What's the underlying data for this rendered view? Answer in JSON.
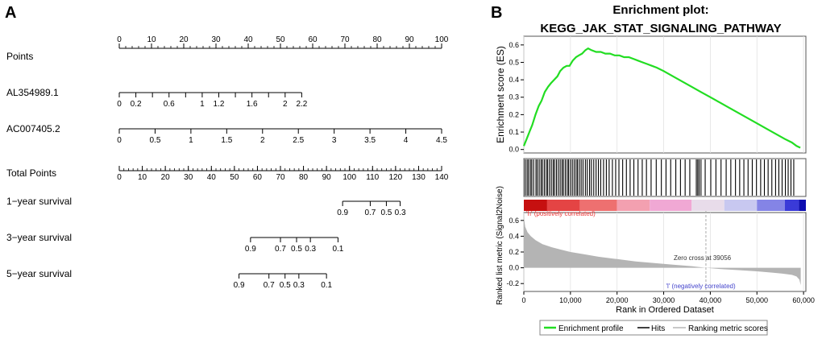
{
  "chart_data": [
    {
      "type": "nomogram",
      "panel_label": "A",
      "rows": [
        {
          "label": "Points",
          "scale": {
            "min": 0,
            "max": 100,
            "major": [
              0,
              10,
              20,
              30,
              40,
              50,
              60,
              70,
              80,
              90,
              100
            ],
            "minor_step": 2
          }
        },
        {
          "label": "AL354989.1",
          "scale": {
            "min": 0,
            "max": 2.2,
            "ticks": [
              0,
              0.2,
              0.4,
              0.6,
              0.8,
              1,
              1.2,
              1.4,
              1.6,
              1.8,
              2,
              2.2
            ],
            "tick_labels": [
              {
                "v": 0,
                "t": "0"
              },
              {
                "v": 0.2,
                "t": "0.2"
              },
              {
                "v": 0.6,
                "t": "0.6"
              },
              {
                "v": 1,
                "t": "1"
              },
              {
                "v": 1.2,
                "t": "1.2"
              },
              {
                "v": 1.6,
                "t": "1.6"
              },
              {
                "v": 2,
                "t": "2"
              },
              {
                "v": 2.2,
                "t": "2.2"
              }
            ]
          },
          "points_range": [
            0,
            56.6
          ]
        },
        {
          "label": "AC007405.2",
          "scale": {
            "min": 0,
            "max": 4.5,
            "major": [
              0,
              0.5,
              1,
              1.5,
              2,
              2.5,
              3,
              3.5,
              4,
              4.5
            ],
            "major_labels": [
              "0",
              "0.5",
              "1",
              "1.5",
              "2",
              "2.5",
              "3",
              "3.5",
              "4",
              "4.5"
            ]
          },
          "points_range": [
            0,
            100
          ]
        },
        {
          "label": "Total Points",
          "scale": {
            "min": 0,
            "max": 140,
            "major": [
              0,
              10,
              20,
              30,
              40,
              50,
              60,
              70,
              80,
              90,
              100,
              110,
              120,
              130,
              140
            ],
            "minor_step": 2
          }
        },
        {
          "label": "1−year survival",
          "ticks": [
            {
              "t": "0.9",
              "tp": 97
            },
            {
              "t": "0.7",
              "tp": 109
            },
            {
              "t": "0.5",
              "tp": 116
            },
            {
              "t": "0.3",
              "tp": 122
            }
          ]
        },
        {
          "label": "3−year survival",
          "ticks": [
            {
              "t": "0.9",
              "tp": 57
            },
            {
              "t": "0.7",
              "tp": 70
            },
            {
              "t": "0.5",
              "tp": 77
            },
            {
              "t": "0.3",
              "tp": 83
            },
            {
              "t": "0.1",
              "tp": 95
            }
          ]
        },
        {
          "label": "5−year survival",
          "ticks": [
            {
              "t": "0.9",
              "tp": 52
            },
            {
              "t": "0.7",
              "tp": 65
            },
            {
              "t": "0.5",
              "tp": 72
            },
            {
              "t": "0.3",
              "tp": 78
            },
            {
              "t": "0.1",
              "tp": 90
            }
          ]
        }
      ]
    },
    {
      "type": "line",
      "panel_label": "B",
      "title": "Enrichment plot:",
      "subtitle": "KEGG_JAK_STAT_SIGNALING_PATHWAY",
      "ylabel": "Enrichment score (ES)",
      "xlim": [
        0,
        60500
      ],
      "ylim": [
        -0.02,
        0.65
      ],
      "yticks": [
        0.0,
        0.1,
        0.2,
        0.3,
        0.4,
        0.5,
        0.6
      ],
      "ytick_labels": [
        "0.0",
        "0.1",
        "0.2",
        "0.3",
        "0.4",
        "0.5",
        "0.6"
      ],
      "series": [
        {
          "name": "Enrichment profile",
          "color": "#22dd22",
          "x": [
            0,
            600,
            1200,
            1800,
            2500,
            3200,
            3800,
            4500,
            5200,
            5800,
            6500,
            7200,
            7800,
            8500,
            9200,
            9800,
            10500,
            11200,
            11800,
            12500,
            13200,
            13800,
            14500,
            15500,
            16500,
            17500,
            18500,
            19500,
            20500,
            21500,
            22500,
            23500,
            24500,
            25500,
            26500,
            27500,
            28500,
            30000,
            32000,
            34000,
            36000,
            38000,
            40000,
            42000,
            44000,
            46000,
            48000,
            50000,
            52000,
            54000,
            56000,
            57500,
            58500,
            59300
          ],
          "y": [
            0.02,
            0.06,
            0.1,
            0.14,
            0.2,
            0.25,
            0.28,
            0.33,
            0.36,
            0.38,
            0.4,
            0.42,
            0.45,
            0.47,
            0.48,
            0.48,
            0.51,
            0.53,
            0.54,
            0.55,
            0.57,
            0.58,
            0.57,
            0.56,
            0.56,
            0.55,
            0.55,
            0.54,
            0.54,
            0.53,
            0.53,
            0.52,
            0.51,
            0.5,
            0.49,
            0.48,
            0.47,
            0.45,
            0.42,
            0.39,
            0.36,
            0.33,
            0.3,
            0.27,
            0.24,
            0.21,
            0.18,
            0.15,
            0.12,
            0.09,
            0.06,
            0.04,
            0.02,
            0.01
          ]
        }
      ]
    },
    {
      "type": "barcode",
      "name": "Hits",
      "color": "#000000",
      "hit_ranks": [
        300,
        700,
        1000,
        1400,
        1700,
        2100,
        2600,
        2900,
        3300,
        3700,
        4000,
        4400,
        4800,
        5100,
        5500,
        5900,
        6300,
        6600,
        7000,
        7400,
        7800,
        8200,
        8500,
        8900,
        9300,
        9600,
        10000,
        10400,
        10800,
        11200,
        11500,
        11900,
        12300,
        12700,
        13200,
        13600,
        14100,
        14500,
        15000,
        15500,
        16000,
        16500,
        17100,
        17700,
        18300,
        19000,
        19700,
        20400,
        21200,
        22000,
        22800,
        23600,
        24500,
        25400,
        26300,
        27300,
        28400,
        29500,
        30500,
        31500,
        32600,
        33600,
        34600,
        35600,
        37000,
        37300,
        37600,
        38000,
        38900,
        40100,
        41200,
        42300,
        43400,
        44400,
        45400,
        46300,
        47200,
        48100,
        49000,
        49900,
        50800,
        51600,
        52400,
        53200,
        54000,
        54700,
        55400,
        56100,
        56700,
        57300,
        57900
      ]
    },
    {
      "type": "heatmap",
      "name": "Rank gradient",
      "bands": [
        {
          "from": 0,
          "to": 5000,
          "color": "#c61010"
        },
        {
          "from": 5000,
          "to": 12000,
          "color": "#e44444"
        },
        {
          "from": 12000,
          "to": 20000,
          "color": "#ee7070"
        },
        {
          "from": 20000,
          "to": 27000,
          "color": "#f3a0b0"
        },
        {
          "from": 27000,
          "to": 36000,
          "color": "#f0a8d4"
        },
        {
          "from": 36000,
          "to": 43000,
          "color": "#e8dcea"
        },
        {
          "from": 43000,
          "to": 50000,
          "color": "#c8c8f0"
        },
        {
          "from": 50000,
          "to": 56000,
          "color": "#8484e6"
        },
        {
          "from": 56000,
          "to": 59000,
          "color": "#3a3ad8"
        },
        {
          "from": 59000,
          "to": 60500,
          "color": "#0c0cb0"
        }
      ],
      "pos_label": "'h' (positively correlated)",
      "neg_label": "'l' (negatively correlated)"
    },
    {
      "type": "area",
      "name": "Ranking metric scores",
      "ylabel": "Ranked list metric (Signal2Noise)",
      "xlabel": "Rank in Ordered Dataset",
      "color": "#b4b4b4",
      "xlim": [
        0,
        60500
      ],
      "ylim": [
        -0.3,
        0.7
      ],
      "yticks": [
        -0.2,
        0.0,
        0.2,
        0.4,
        0.6
      ],
      "ytick_labels": [
        "-0.2",
        "0.0",
        "0.2",
        "0.4",
        "0.6"
      ],
      "xticks": [
        0,
        10000,
        20000,
        30000,
        40000,
        50000,
        60000
      ],
      "xtick_labels": [
        "0",
        "10,000",
        "20,000",
        "30,000",
        "40,000",
        "50,000",
        "60,000"
      ],
      "x": [
        0,
        300,
        800,
        1500,
        2500,
        4000,
        6000,
        8000,
        10000,
        13000,
        16000,
        20000,
        24000,
        28000,
        32000,
        36000,
        39056,
        42000,
        46000,
        50000,
        53000,
        55500,
        57500,
        58500,
        59100,
        59400
      ],
      "y": [
        0.65,
        0.52,
        0.45,
        0.4,
        0.35,
        0.3,
        0.26,
        0.23,
        0.2,
        0.17,
        0.14,
        0.11,
        0.08,
        0.06,
        0.04,
        0.02,
        0.0,
        -0.015,
        -0.03,
        -0.045,
        -0.06,
        -0.075,
        -0.09,
        -0.11,
        -0.15,
        -0.22
      ],
      "zero_cross_label": "Zero cross at 39056",
      "zero_cross": 39056
    },
    {
      "type": "legend",
      "items": [
        {
          "label": "Enrichment profile",
          "color": "#22dd22"
        },
        {
          "label": "Hits",
          "color": "#000000"
        },
        {
          "label": "Ranking metric scores",
          "color": "#c8c8c8"
        }
      ]
    }
  ]
}
